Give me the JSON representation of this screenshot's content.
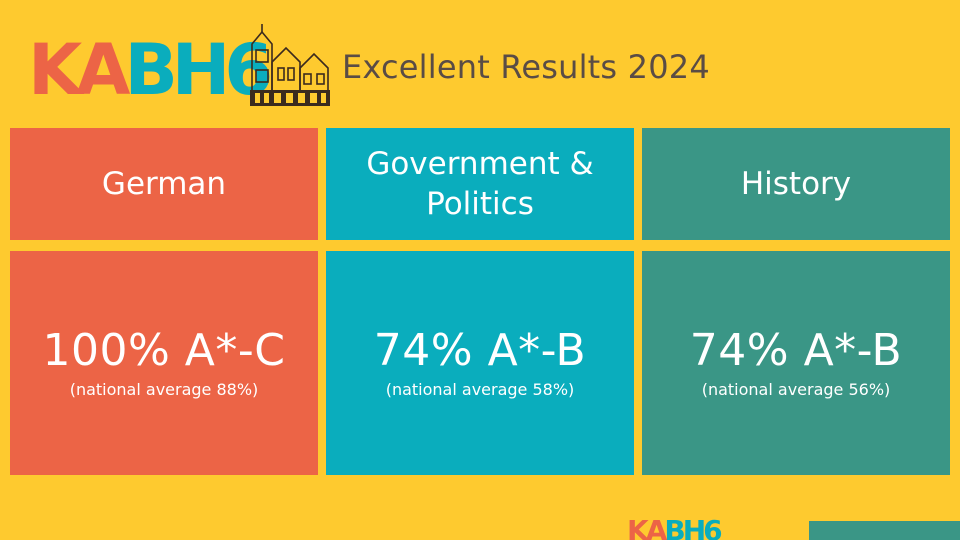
{
  "logo": {
    "letters": [
      "K",
      "A",
      "B",
      "H",
      "6"
    ],
    "colors": [
      "#EC6446",
      "#EC6446",
      "#0AADBD",
      "#0AADBD",
      "#0AADBD"
    ],
    "icon": "school-building-icon"
  },
  "header": {
    "title": "Excellent Results 2024"
  },
  "colors": {
    "background": "#FECA2F",
    "orange": "#EC6446",
    "cyan": "#0AADBD",
    "teal": "#3A9686",
    "title_text": "#5A4C45"
  },
  "columns": [
    {
      "subject": "German",
      "result": "100% A*-C",
      "note": "(national average 88%)"
    },
    {
      "subject": "Government & Politics",
      "result": "74% A*-B",
      "note": "(national average 58%)"
    },
    {
      "subject": "History",
      "result": "74% A*-B",
      "note": "(national average 56%)"
    }
  ],
  "thumbnail": {
    "logo_text": "KABH6"
  }
}
